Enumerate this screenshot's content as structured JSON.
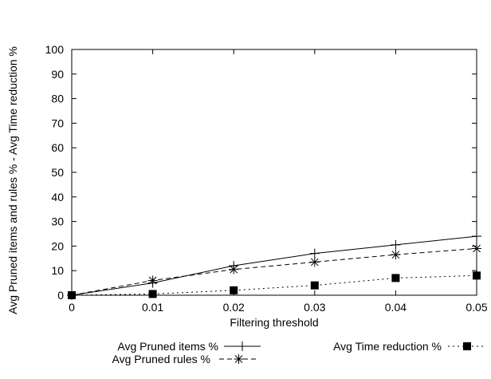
{
  "chart_data": {
    "type": "line",
    "title": "",
    "xlabel": "Filtering threshold",
    "ylabel": "Avg Pruned items and rules % - Avg Time reduction %",
    "x": [
      0,
      0.01,
      0.02,
      0.03,
      0.04,
      0.05
    ],
    "x_tick_labels": [
      "0",
      "0.01",
      "0.02",
      "0.03",
      "0.04",
      "0.05"
    ],
    "xlim": [
      0,
      0.05
    ],
    "ylim": [
      0,
      100
    ],
    "y_ticks": [
      0,
      10,
      20,
      30,
      40,
      50,
      60,
      70,
      80,
      90,
      100
    ],
    "grid": false,
    "legend_position": "bottom",
    "series": [
      {
        "name": "Avg Pruned items %",
        "values": [
          0,
          5,
          12,
          17,
          20.5,
          24
        ],
        "line_style": "solid",
        "marker": "plus",
        "color": "#000000"
      },
      {
        "name": "Avg Pruned rules %",
        "values": [
          0,
          6,
          10.5,
          13.5,
          16.5,
          19
        ],
        "line_style": "dashed",
        "marker": "asterisk",
        "color": "#000000"
      },
      {
        "name": "Avg Time reduction %",
        "values": [
          0,
          0.5,
          2,
          4,
          7,
          8
        ],
        "line_style": "dotted",
        "marker": "filled-square",
        "color": "#000000"
      }
    ]
  }
}
